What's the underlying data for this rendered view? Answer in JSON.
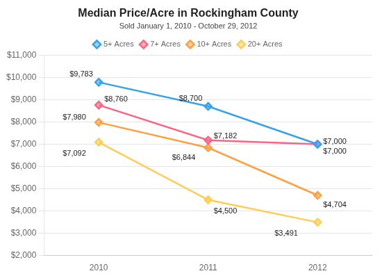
{
  "chart_data": {
    "type": "line",
    "title": "Median Price/Acre in Rockingham County",
    "subtitle": "Sold January 1, 2010 - October 29, 2012",
    "categories": [
      "2010",
      "2011",
      "2012"
    ],
    "series": [
      {
        "name": "5+ Acres",
        "values": [
          9783,
          8700,
          7000
        ],
        "value_labels": [
          "$9,783",
          "$8,700",
          "$7,000"
        ]
      },
      {
        "name": "7+ Acres",
        "values": [
          8760,
          7182,
          7000
        ],
        "value_labels": [
          "$8,760",
          "$7,182",
          "$7,000"
        ]
      },
      {
        "name": "10+ Acres",
        "values": [
          7980,
          6844,
          4704
        ],
        "value_labels": [
          "$7,980",
          "$6,844",
          "$4,704"
        ]
      },
      {
        "name": "20+ Acres",
        "values": [
          7092,
          4500,
          3491
        ],
        "value_labels": [
          "$7,092",
          "$4,500",
          "$3,491"
        ]
      }
    ],
    "ylim": [
      2000,
      11000
    ],
    "yticks": [
      {
        "value": 2000,
        "label": "$2,000"
      },
      {
        "value": 3000,
        "label": "$3,000"
      },
      {
        "value": 4000,
        "label": "$4,000"
      },
      {
        "value": 5000,
        "label": "$5,000"
      },
      {
        "value": 6000,
        "label": "$6,000"
      },
      {
        "value": 7000,
        "label": "$7,000"
      },
      {
        "value": 8000,
        "label": "$8,000"
      },
      {
        "value": 9000,
        "label": "$9,000"
      },
      {
        "value": 10000,
        "label": "$10,000"
      },
      {
        "value": 11000,
        "label": "$11,000"
      }
    ],
    "grid": "y",
    "legend": "top",
    "data_labels": true,
    "marker": "diamond"
  }
}
